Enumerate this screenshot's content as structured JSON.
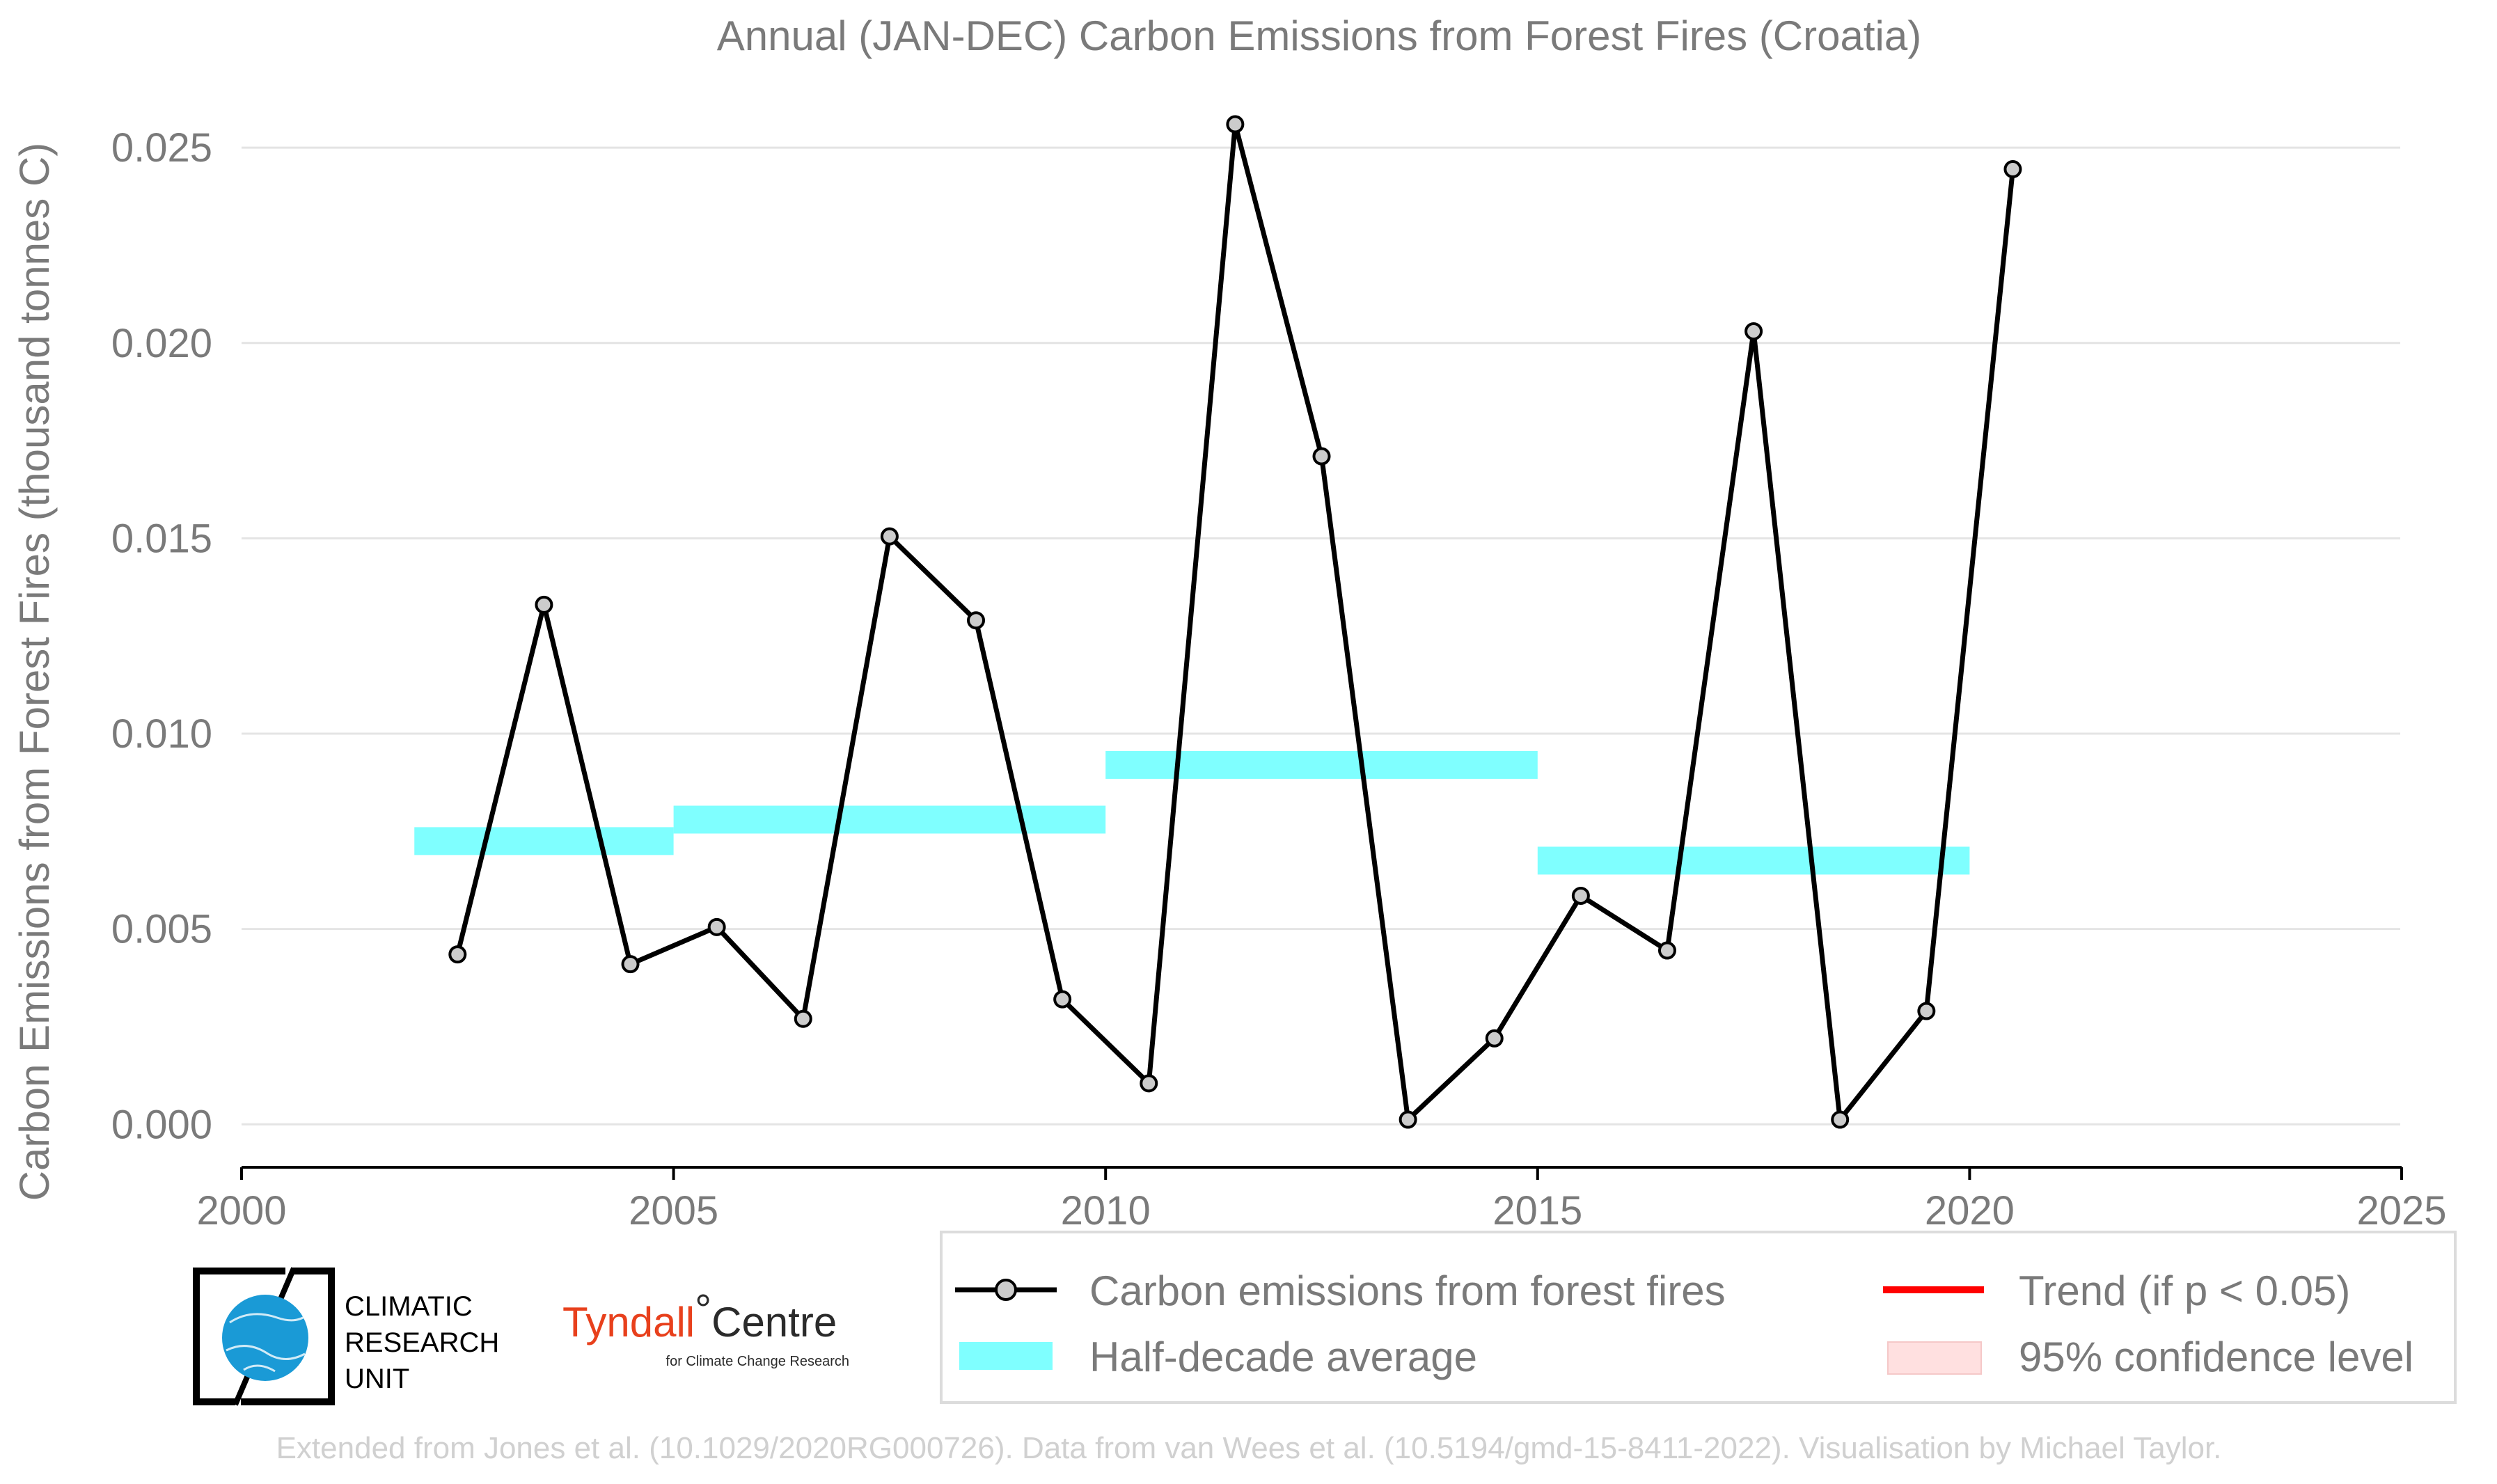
{
  "chart_data": {
    "type": "line",
    "title": "Annual (JAN-DEC) Carbon Emissions from Forest Fires (Croatia)",
    "xlabel": "",
    "ylabel": "Carbon Emissions from Forest Fires (thousand tonnes C)",
    "xlim": [
      2000,
      2025
    ],
    "ylim": [
      -0.0011,
      0.0265
    ],
    "x_ticks": [
      2000,
      2005,
      2010,
      2015,
      2020,
      2025
    ],
    "x_tick_labels": [
      "2000",
      "2005",
      "2010",
      "2015",
      "2020",
      "2025"
    ],
    "y_ticks": [
      0.0,
      0.005,
      0.01,
      0.015,
      0.02,
      0.025
    ],
    "y_tick_labels": [
      "0.000",
      "0.005",
      "0.010",
      "0.015",
      "0.020",
      "0.025"
    ],
    "grid": "horizontal",
    "series": [
      {
        "name": "Carbon emissions from forest fires",
        "style": "line-with-markers",
        "color": "#000000",
        "marker_fill": "#cccccc",
        "x": [
          2002.5,
          2003.5,
          2004.5,
          2005.5,
          2006.5,
          2007.5,
          2008.5,
          2009.5,
          2010.5,
          2011.5,
          2012.5,
          2013.5,
          2014.5,
          2015.5,
          2016.5,
          2017.5,
          2018.5,
          2019.5,
          2020.5
        ],
        "y": [
          0.00435,
          0.0133,
          0.0041,
          0.00505,
          0.0027,
          0.01505,
          0.0129,
          0.0032,
          0.00105,
          0.0256,
          0.0171,
          0.00012,
          0.0022,
          0.00585,
          0.00445,
          0.0203,
          0.00012,
          0.0029,
          0.02445
        ]
      },
      {
        "name": "Half-decade average",
        "style": "band-segments",
        "color": "#7fffff",
        "segments": [
          {
            "x_start": 2002,
            "x_end": 2005,
            "y": 0.00725
          },
          {
            "x_start": 2005,
            "x_end": 2010,
            "y": 0.0078
          },
          {
            "x_start": 2010,
            "x_end": 2015,
            "y": 0.0092
          },
          {
            "x_start": 2015,
            "x_end": 2020,
            "y": 0.00675
          }
        ]
      }
    ],
    "legend": {
      "placement": "bottom-right",
      "entries": [
        {
          "label": "Carbon emissions from forest fires",
          "kind": "line-marker",
          "color": "#000000"
        },
        {
          "label": "Trend (if p < 0.05)",
          "kind": "line",
          "color": "#ff0000"
        },
        {
          "label": "Half-decade average",
          "kind": "patch",
          "color": "#7fffff"
        },
        {
          "label": "95% confidence level",
          "kind": "patch",
          "color": "#ffe0e0"
        }
      ]
    }
  },
  "credit": "Extended from Jones et al. (10.1029/2020RG000726). Data from van Wees et al. (10.5194/gmd-15-8411-2022). Visualisation by Michael Taylor.",
  "logos": {
    "cru": {
      "lines": [
        "CLIMATIC",
        "RESEARCH",
        "UNIT"
      ],
      "globe_color": "#1a9ad6"
    },
    "tyndall": {
      "name": "Tyndall",
      "degree": "°",
      "centre": "Centre",
      "subtitle": "for Climate Change Research",
      "name_color": "#e8401c"
    }
  }
}
